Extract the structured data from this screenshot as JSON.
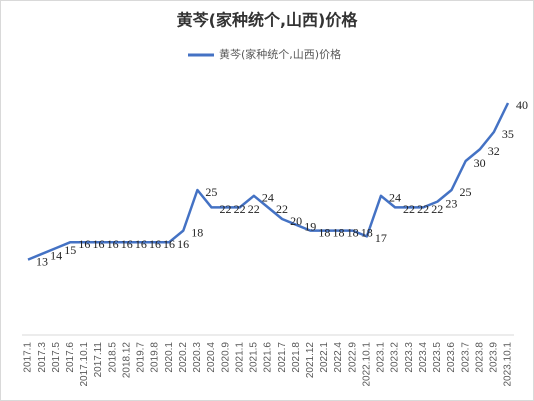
{
  "chart_data": {
    "type": "line",
    "title": "黄芩(家种统个,山西)价格",
    "categories": [
      "2017.1",
      "2017.3",
      "2017.5",
      "2017.6",
      "2017.10.1",
      "2017.11",
      "2018.5",
      "2018.12",
      "2019.7",
      "2019.8",
      "2020.1",
      "2020.2",
      "2020.3",
      "2020.4",
      "2020.9",
      "2021.1",
      "2021.5",
      "2021.6",
      "2021.7",
      "2021.8",
      "2021.12",
      "2022.1",
      "2022.4",
      "2022.9",
      "2022.10.1",
      "2023.1",
      "2023.2",
      "2023.3",
      "2023.4",
      "2023.5",
      "2023.6",
      "2023.7",
      "2023.8",
      "2023.9",
      "2023.10.1"
    ],
    "series": [
      {
        "name": "黄芩(家种统个,山西)价格",
        "color": "#4472c4",
        "values": [
          13,
          14,
          15,
          16,
          16,
          16,
          16,
          16,
          16,
          16,
          16,
          18,
          25,
          22,
          22,
          22,
          24,
          22,
          20,
          19,
          18,
          18,
          18,
          18,
          17,
          24,
          22,
          22,
          22,
          23,
          25,
          30,
          32,
          35,
          40
        ]
      }
    ],
    "ylim": [
      0,
      45
    ]
  }
}
